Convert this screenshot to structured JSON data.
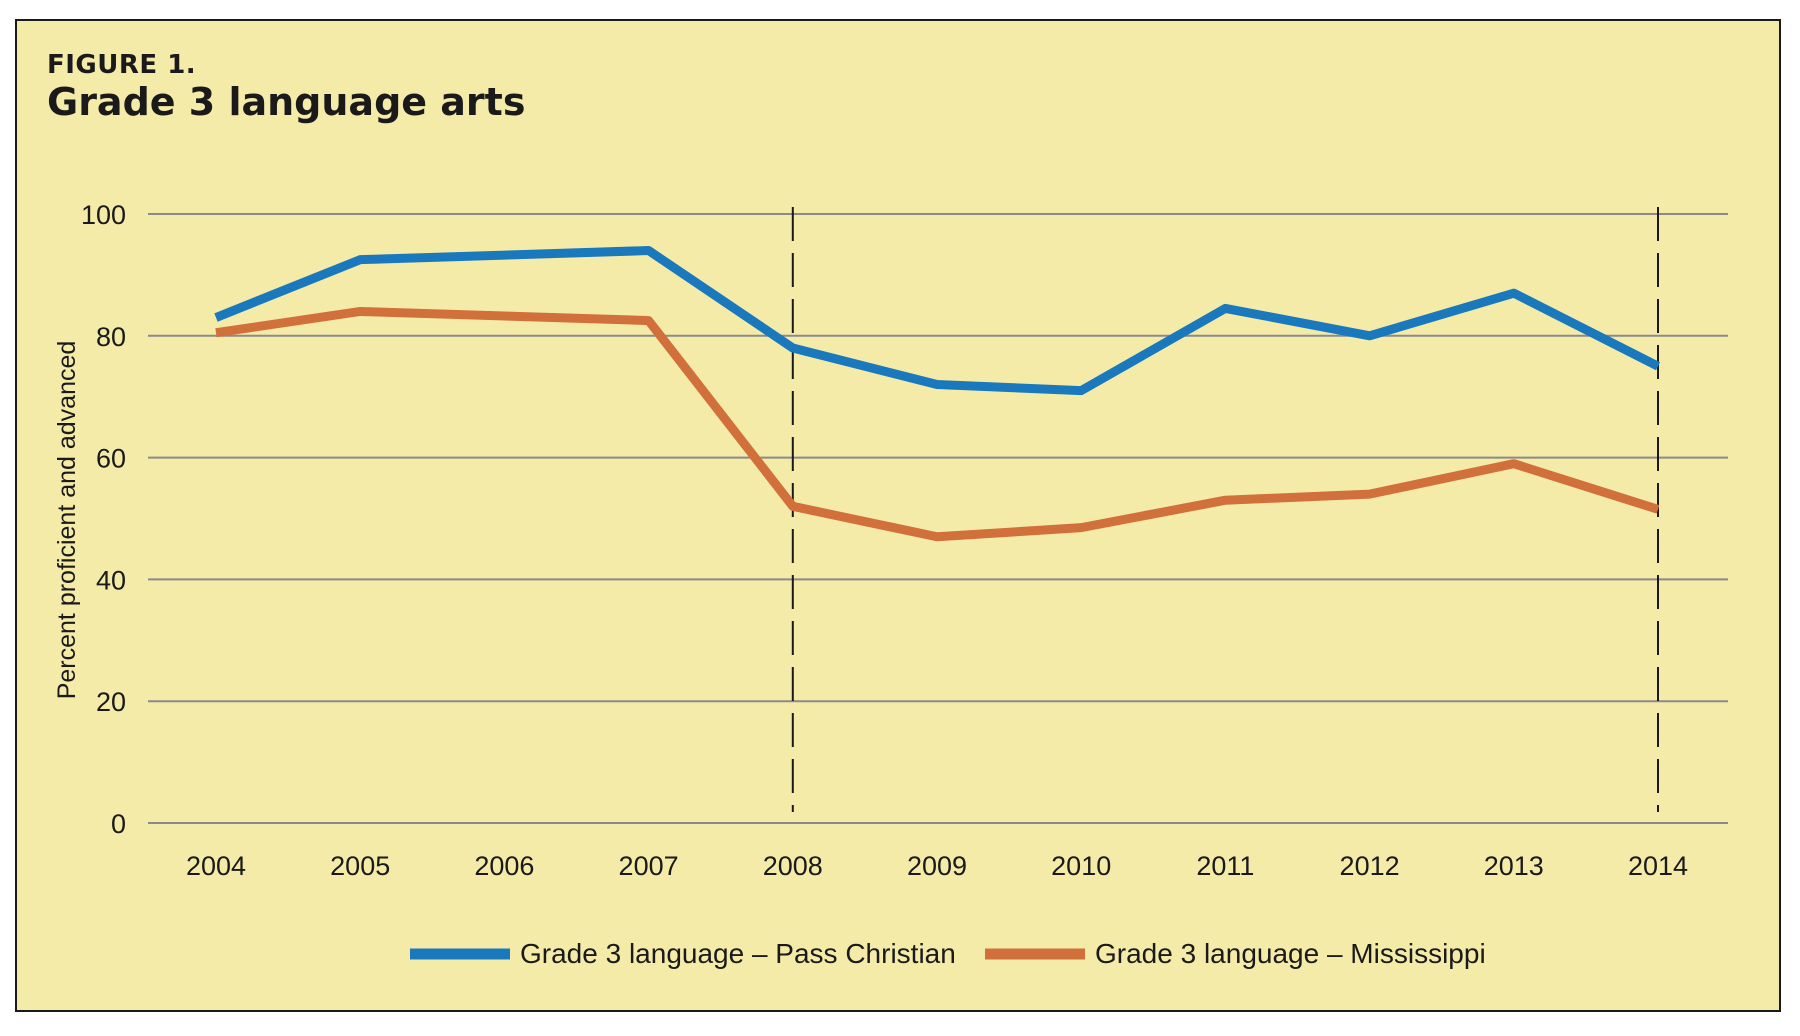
{
  "figure_label": "FIGURE 1.",
  "chart_data": {
    "type": "line",
    "title": "Grade 3 language arts",
    "xlabel": "",
    "ylabel": "Percent proficient and advanced",
    "categories": [
      "2004",
      "2005",
      "2006",
      "2007",
      "2008",
      "2009",
      "2010",
      "2011",
      "2012",
      "2013",
      "2014"
    ],
    "yticks": [
      "0",
      "20",
      "40",
      "60",
      "80",
      "100"
    ],
    "ylim": [
      0,
      100
    ],
    "grid": true,
    "reference_years": [
      "2008",
      "2014"
    ],
    "legend_position": "bottom-center",
    "series": [
      {
        "name": "Grade 3 language – Pass Christian",
        "color": "#1a79bd",
        "values": [
          83,
          92.5,
          null,
          94,
          78,
          72,
          71,
          84.5,
          80,
          87,
          75
        ]
      },
      {
        "name": "Grade 3 language – Mississippi",
        "color": "#d1703b",
        "values": [
          80.5,
          84,
          null,
          82.5,
          52,
          47,
          48.5,
          53,
          54,
          59,
          51.5
        ]
      }
    ]
  }
}
